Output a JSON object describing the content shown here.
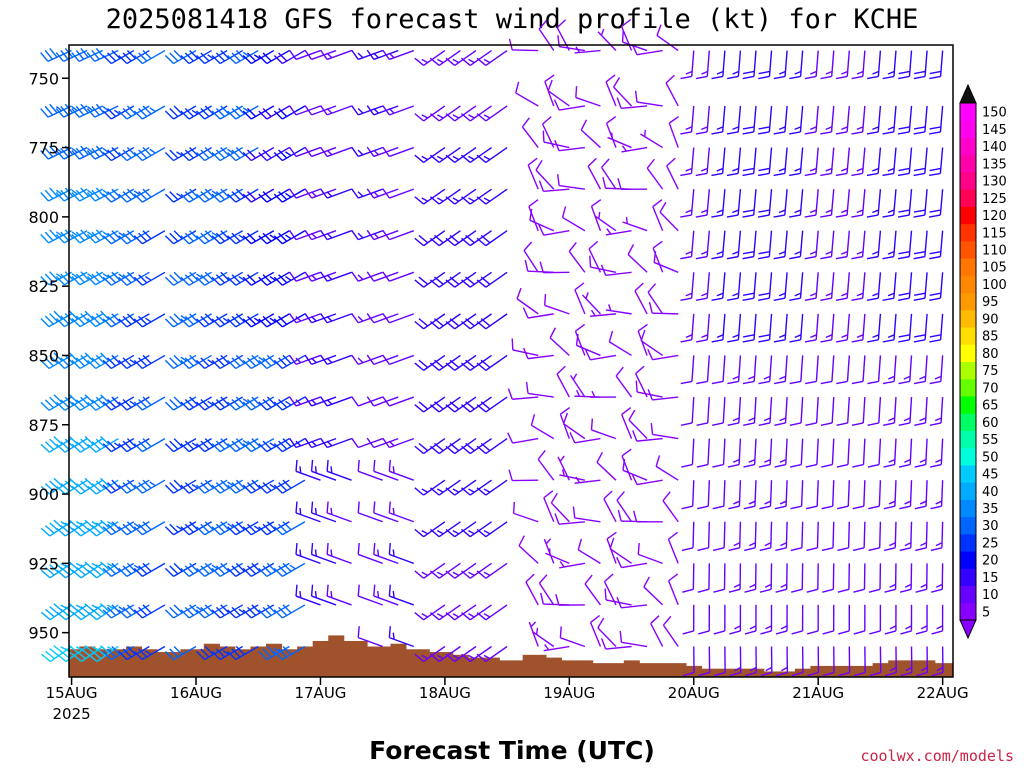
{
  "chart_data": {
    "type": "wind-barb-timeseries",
    "title": "2025081418 GFS forecast wind profile (kt) for KCHE",
    "xlabel": "Forecast Time (UTC)",
    "ylabel": "",
    "credit": "coolwx.com/models",
    "y_axis": {
      "ticks": [
        750,
        775,
        800,
        825,
        850,
        875,
        900,
        925,
        950
      ],
      "range": [
        738,
        966
      ],
      "units": "hPa"
    },
    "x_axis": {
      "ticks": [
        {
          "label": "15AUG",
          "sub": "2025",
          "hour": 0
        },
        {
          "label": "16AUG",
          "sub": "",
          "hour": 24
        },
        {
          "label": "17AUG",
          "sub": "",
          "hour": 48
        },
        {
          "label": "18AUG",
          "sub": "",
          "hour": 72
        },
        {
          "label": "19AUG",
          "sub": "",
          "hour": 96
        },
        {
          "label": "20AUG",
          "sub": "",
          "hour": 120
        },
        {
          "label": "21AUG",
          "sub": "",
          "hour": 144
        },
        {
          "label": "22AUG",
          "sub": "",
          "hour": 168
        }
      ],
      "range_hours": [
        -0.5,
        170
      ]
    },
    "colorbar": {
      "levels": [
        5,
        10,
        15,
        20,
        25,
        30,
        35,
        40,
        45,
        50,
        55,
        60,
        65,
        70,
        75,
        80,
        85,
        90,
        95,
        100,
        105,
        110,
        115,
        120,
        125,
        130,
        135,
        140,
        145,
        150
      ],
      "colors": [
        "#8800ff",
        "#6600ff",
        "#3300ff",
        "#0000ff",
        "#0033ff",
        "#0066ff",
        "#0088ff",
        "#00aaff",
        "#00ccff",
        "#00ffdd",
        "#00ffaa",
        "#00ff66",
        "#00ff00",
        "#66ff00",
        "#aaff00",
        "#ffff00",
        "#ffdd00",
        "#ffbb00",
        "#ff9900",
        "#ff8800",
        "#ff7700",
        "#ff5500",
        "#ff3300",
        "#ff0000",
        "#ff0055",
        "#ff0088",
        "#ff00aa",
        "#ff00cc",
        "#ff00ee",
        "#ff00ff"
      ]
    },
    "barb_levels": [
      740,
      760,
      775,
      790,
      805,
      820,
      835,
      850,
      865,
      880,
      895,
      910,
      925,
      940,
      955
    ],
    "barb_hours": [
      0,
      3,
      6,
      9,
      12,
      15,
      18,
      24,
      27,
      30,
      33,
      36,
      39,
      42,
      45,
      48,
      51,
      54,
      60,
      63,
      66,
      72,
      75,
      78,
      81,
      84,
      90,
      93,
      96,
      99,
      102,
      105,
      108,
      111,
      114,
      117,
      120,
      123,
      126,
      129,
      132,
      135,
      138,
      141,
      144,
      147,
      150,
      153,
      156,
      159,
      162,
      165,
      168
    ],
    "terrain_pressure": [
      956,
      955,
      956,
      956,
      955,
      956,
      957,
      956,
      954,
      955,
      956,
      955,
      954,
      956,
      955,
      953,
      951,
      953,
      955,
      954,
      956,
      957,
      958,
      959,
      959,
      960,
      958,
      959,
      960,
      960,
      961,
      961,
      960,
      961,
      961,
      961,
      962,
      963,
      963,
      963,
      963,
      964,
      964,
      963,
      962,
      962,
      962,
      962,
      961,
      960,
      960,
      960,
      961
    ]
  }
}
